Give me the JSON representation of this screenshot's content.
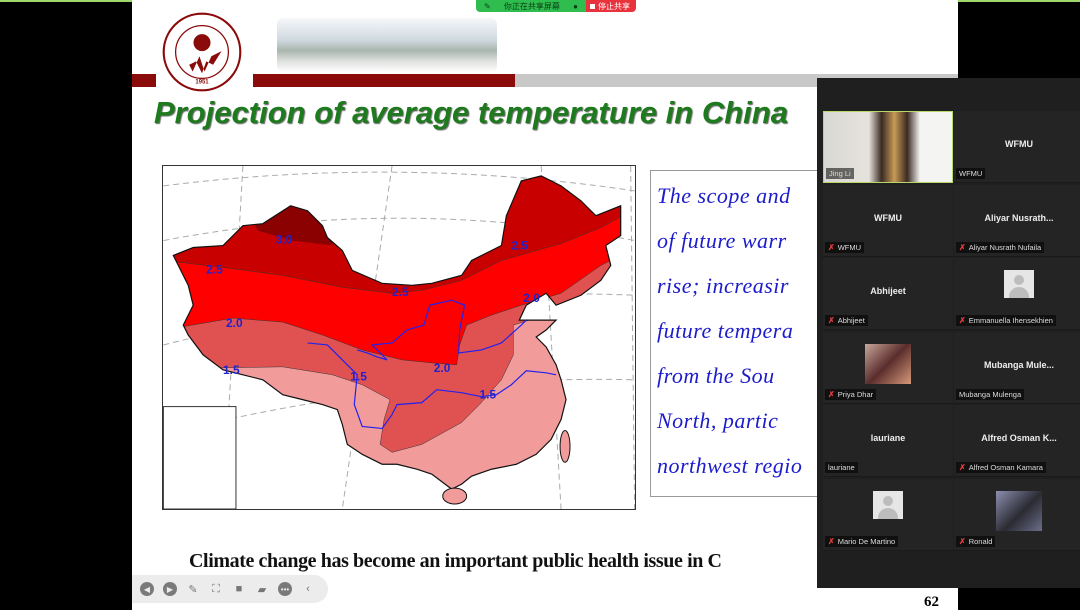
{
  "share_bar": {
    "status": "你正在共享屏幕",
    "stop_label": "停止共享",
    "colors": {
      "status": "#2ebd4e",
      "stop": "#e8323c"
    }
  },
  "slide": {
    "logo": {
      "text_top": "潍坊醫學院",
      "text_ring": "WEIFANG MEDICAL UNIVERSITY",
      "year": "1951"
    },
    "title": "Projection of average temperature in China",
    "map": {
      "contour_labels": [
        "3.0",
        "2.5",
        "2.5",
        "2.5",
        "2.0",
        "2.0",
        "2.0",
        "1.5",
        "1.5",
        "1.5"
      ]
    },
    "text_lines": [
      "The scope and",
      "of future warr",
      "rise; increasir",
      "future tempera",
      "from the Sou",
      "North, partic",
      "northwest regio"
    ],
    "footer": "Climate change has become an important public health issue in C",
    "page_number": "62",
    "colors": {
      "title": "#1d7a1d",
      "text": "#1c1ccc",
      "banner": "#8b0a0a"
    }
  },
  "toolbar": {
    "icons": [
      "previous-icon",
      "next-icon",
      "pen-icon",
      "screenshot-icon",
      "camera-icon",
      "comment-icon",
      "more-icon",
      "collapse-icon"
    ]
  },
  "participants": [
    {
      "tile": "",
      "label": "Jing Li",
      "muted": false,
      "video": true
    },
    {
      "tile": "WFMU",
      "label": "WFMU",
      "muted": false
    },
    {
      "tile": "WFMU",
      "label": "WFMU",
      "muted": true
    },
    {
      "tile": "Aliyar  Nusrath...",
      "label": "Aliyar Nusrath Nufaila",
      "muted": true
    },
    {
      "tile": "Abhijeet",
      "label": "Abhijeet",
      "muted": true
    },
    {
      "tile": "",
      "label": "Emmanuella Ihensekhien",
      "muted": true,
      "avatar": true
    },
    {
      "tile": "",
      "label": "Priya Dhar",
      "muted": true,
      "photo": true
    },
    {
      "tile": "Mubanga  Mule...",
      "label": "Mubanga Mulenga",
      "muted": false
    },
    {
      "tile": "lauriane",
      "label": "lauriane",
      "muted": false
    },
    {
      "tile": "Alfred Osman K...",
      "label": "Alfred Osman Kamara",
      "muted": true
    },
    {
      "tile": "",
      "label": "Mario De Martino",
      "muted": true,
      "avatar": true
    },
    {
      "tile": "",
      "label": "Ronald",
      "muted": true,
      "photo": true
    }
  ]
}
